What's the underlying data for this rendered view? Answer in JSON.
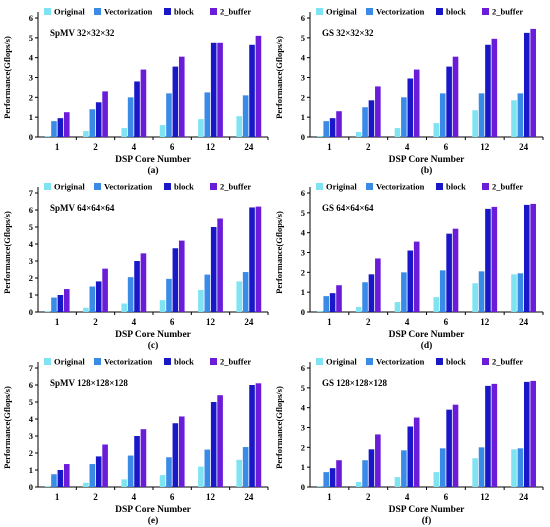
{
  "series_colors": [
    "#7fe3f2",
    "#3a8be8",
    "#1a17c9",
    "#6a1cd8"
  ],
  "chart_data": [
    {
      "type": "bar",
      "panel": "(a)",
      "title": "SpMV 32×32×32",
      "xlabel": "DSP Core Number",
      "ylabel": "Performance(Gflops/s)",
      "ylim": [
        0,
        6
      ],
      "yticks": [
        0,
        1,
        2,
        3,
        4,
        5,
        6
      ],
      "categories": [
        "1",
        "2",
        "4",
        "6",
        "12",
        "24"
      ],
      "legend": "top",
      "series": [
        {
          "name": "Original",
          "values": [
            0.05,
            0.3,
            0.45,
            0.6,
            0.9,
            1.05
          ]
        },
        {
          "name": "Vectorization",
          "values": [
            0.8,
            1.4,
            2.0,
            2.2,
            2.25,
            2.1
          ]
        },
        {
          "name": "block",
          "values": [
            0.95,
            1.75,
            2.8,
            3.55,
            4.75,
            4.65
          ]
        },
        {
          "name": "2_buffer",
          "values": [
            1.25,
            2.3,
            3.4,
            4.05,
            4.75,
            5.1
          ]
        }
      ]
    },
    {
      "type": "bar",
      "panel": "(b)",
      "title": "GS 32×32×32",
      "xlabel": "DSP Core Number",
      "ylabel": "Performance(Gflops/s)",
      "ylim": [
        0,
        6
      ],
      "yticks": [
        0,
        1,
        2,
        3,
        4,
        5,
        6
      ],
      "categories": [
        "1",
        "2",
        "4",
        "6",
        "12",
        "24"
      ],
      "legend": "top",
      "series": [
        {
          "name": "Original",
          "values": [
            0.05,
            0.25,
            0.45,
            0.7,
            1.35,
            1.85
          ]
        },
        {
          "name": "Vectorization",
          "values": [
            0.8,
            1.5,
            2.0,
            2.2,
            2.2,
            2.2
          ]
        },
        {
          "name": "block",
          "values": [
            0.95,
            1.85,
            2.95,
            3.55,
            4.65,
            5.25
          ]
        },
        {
          "name": "2_buffer",
          "values": [
            1.3,
            2.55,
            3.4,
            4.05,
            4.95,
            5.45
          ]
        }
      ]
    },
    {
      "type": "bar",
      "panel": "(c)",
      "title": "SpMV 64×64×64",
      "xlabel": "DSP Core Number",
      "ylabel": "Performance(Gflops/s)",
      "ylim": [
        0,
        7
      ],
      "yticks": [
        0,
        1,
        2,
        3,
        4,
        5,
        6,
        7
      ],
      "categories": [
        "1",
        "2",
        "4",
        "6",
        "12",
        "24"
      ],
      "legend": "top",
      "series": [
        {
          "name": "Original",
          "values": [
            0.05,
            0.25,
            0.5,
            0.7,
            1.3,
            1.8
          ]
        },
        {
          "name": "Vectorization",
          "values": [
            0.85,
            1.5,
            2.05,
            1.95,
            2.2,
            2.35
          ]
        },
        {
          "name": "block",
          "values": [
            1.0,
            1.8,
            3.0,
            3.75,
            5.0,
            6.15
          ]
        },
        {
          "name": "2_buffer",
          "values": [
            1.35,
            2.55,
            3.45,
            4.2,
            5.5,
            6.2
          ]
        }
      ]
    },
    {
      "type": "bar",
      "panel": "(d)",
      "title": "GS 64×64×64",
      "xlabel": "DSP Core Number",
      "ylabel": "Performance(Gflops/s)",
      "ylim": [
        0,
        6
      ],
      "yticks": [
        0,
        1,
        2,
        3,
        4,
        5,
        6
      ],
      "categories": [
        "1",
        "2",
        "4",
        "6",
        "12",
        "24"
      ],
      "legend": "top",
      "series": [
        {
          "name": "Original",
          "values": [
            0.05,
            0.25,
            0.5,
            0.75,
            1.45,
            1.9
          ]
        },
        {
          "name": "Vectorization",
          "values": [
            0.8,
            1.5,
            2.0,
            2.1,
            2.05,
            1.95
          ]
        },
        {
          "name": "block",
          "values": [
            0.95,
            1.9,
            3.1,
            3.95,
            5.2,
            5.4
          ]
        },
        {
          "name": "2_buffer",
          "values": [
            1.35,
            2.7,
            3.55,
            4.2,
            5.3,
            5.45
          ]
        }
      ]
    },
    {
      "type": "bar",
      "panel": "(e)",
      "title": "SpMV 128×128×128",
      "xlabel": "DSP Core Number",
      "ylabel": "Performance(Gflops/s)",
      "ylim": [
        0,
        7
      ],
      "yticks": [
        0,
        1,
        2,
        3,
        4,
        5,
        6,
        7
      ],
      "categories": [
        "1",
        "2",
        "4",
        "6",
        "12",
        "24"
      ],
      "legend": "top",
      "series": [
        {
          "name": "Original",
          "values": [
            0.05,
            0.25,
            0.45,
            0.7,
            1.2,
            1.6
          ]
        },
        {
          "name": "Vectorization",
          "values": [
            0.75,
            1.35,
            1.85,
            1.75,
            2.2,
            2.35
          ]
        },
        {
          "name": "block",
          "values": [
            1.0,
            1.8,
            3.0,
            3.75,
            5.0,
            6.0
          ]
        },
        {
          "name": "2_buffer",
          "values": [
            1.35,
            2.5,
            3.4,
            4.15,
            5.4,
            6.1
          ]
        }
      ]
    },
    {
      "type": "bar",
      "panel": "(f)",
      "title": "GS 128×128×128",
      "xlabel": "DSP Core Number",
      "ylabel": "Performance(Gflops/s)",
      "ylim": [
        0,
        6
      ],
      "yticks": [
        0,
        1,
        2,
        3,
        4,
        5,
        6
      ],
      "categories": [
        "1",
        "2",
        "4",
        "6",
        "12",
        "24"
      ],
      "legend": "top",
      "series": [
        {
          "name": "Original",
          "values": [
            0.05,
            0.25,
            0.5,
            0.75,
            1.45,
            1.9
          ]
        },
        {
          "name": "Vectorization",
          "values": [
            0.75,
            1.35,
            1.85,
            1.95,
            2.0,
            1.95
          ]
        },
        {
          "name": "block",
          "values": [
            0.95,
            1.9,
            3.05,
            3.9,
            5.1,
            5.3
          ]
        },
        {
          "name": "2_buffer",
          "values": [
            1.35,
            2.65,
            3.5,
            4.15,
            5.2,
            5.35
          ]
        }
      ]
    }
  ]
}
